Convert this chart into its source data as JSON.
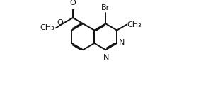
{
  "bg_color": "#ffffff",
  "line_color": "#111111",
  "lw": 1.4,
  "dbl_off": 0.011,
  "dbl_trim": 0.15,
  "fs": 8.0,
  "bl": 0.14,
  "xlim": [
    0.0,
    1.0
  ],
  "ylim": [
    0.05,
    1.0
  ],
  "C4": [
    0.555,
    0.845
  ]
}
